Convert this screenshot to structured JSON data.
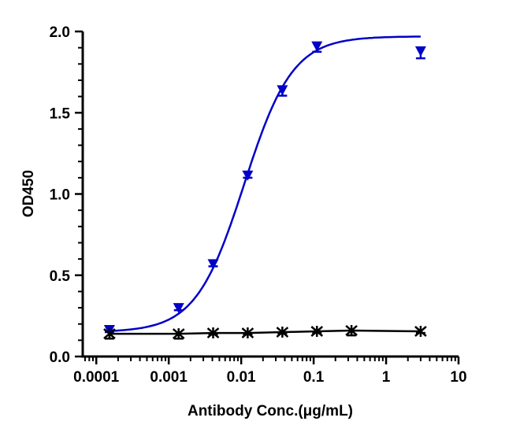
{
  "chart_data": {
    "type": "scatter",
    "title": "",
    "xlabel": "Antibody Conc.(μg/mL)",
    "ylabel": "OD450",
    "xscale": "log",
    "xlim": [
      6.5e-05,
      10
    ],
    "ylim": [
      0,
      2.0
    ],
    "xticks": [
      0.0001,
      0.001,
      0.01,
      0.1,
      1,
      10
    ],
    "xtick_labels": [
      "0.0001",
      "0.001",
      "0.01",
      "0.1",
      "1",
      "10"
    ],
    "yticks": [
      0,
      0.5,
      1.0,
      1.5,
      2.0
    ],
    "ytick_labels": [
      "0.0",
      "0.5",
      "1.0",
      "1.5",
      "2.0"
    ],
    "grid": false,
    "series": [
      {
        "color": "#0000c8",
        "marker": "triangle-down",
        "x": [
          0.000152,
          0.00137,
          0.0041,
          0.0123,
          0.037,
          0.111,
          3
        ],
        "y": [
          0.16,
          0.295,
          0.565,
          1.11,
          1.635,
          1.905,
          1.875
        ],
        "err": [
          0.01,
          0.01,
          0.01,
          0.01,
          0.03,
          0.03,
          0.04
        ],
        "fit": {
          "model": "4PL",
          "bottom": 0.15,
          "top": 1.97,
          "ec50": 0.011,
          "hill": 1.3
        }
      },
      {
        "color": "#000000",
        "marker": "x",
        "x": [
          0.000152,
          0.00137,
          0.0041,
          0.0123,
          0.037,
          0.111,
          0.333,
          3
        ],
        "y": [
          0.14,
          0.14,
          0.145,
          0.145,
          0.15,
          0.155,
          0.16,
          0.155
        ],
        "err": [
          0.03,
          0.03,
          0.01,
          0.01,
          0.01,
          0.01,
          0.03,
          0.01
        ]
      }
    ]
  }
}
